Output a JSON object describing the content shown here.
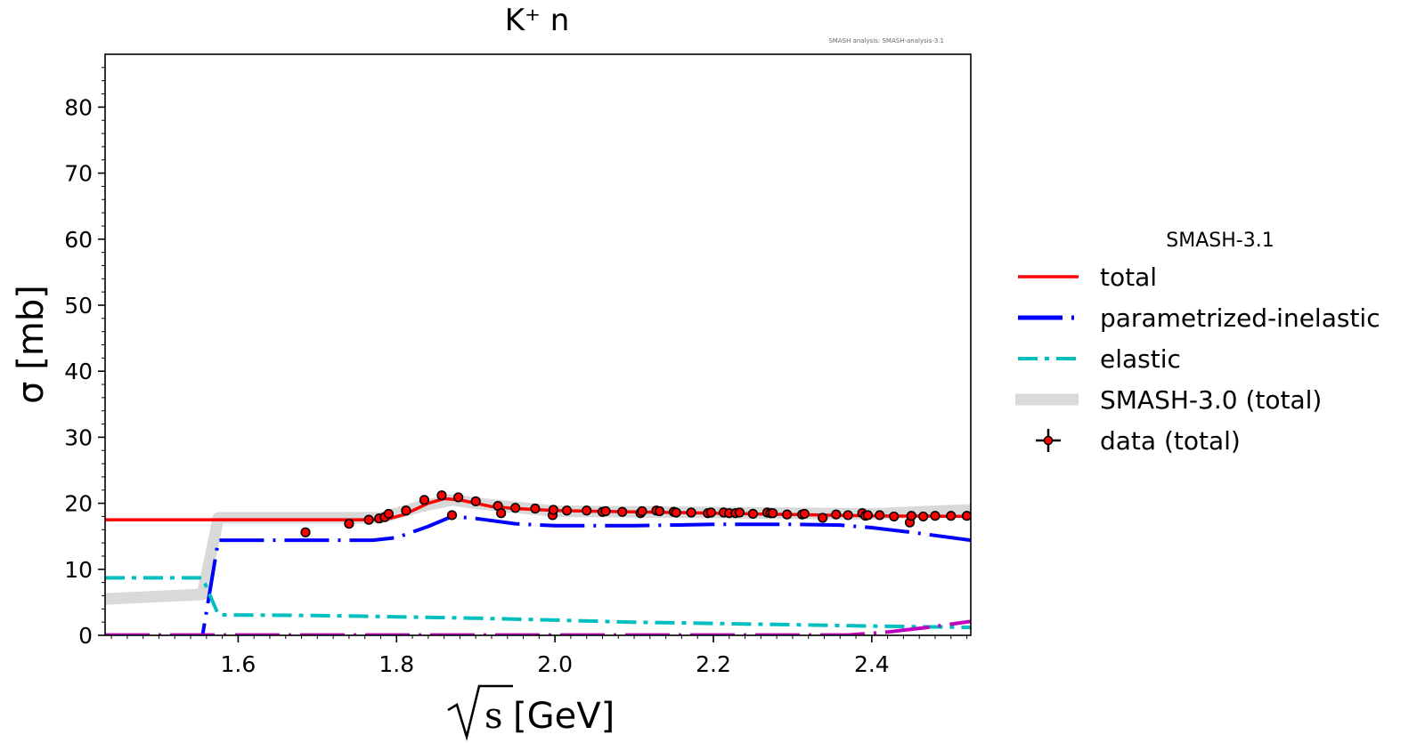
{
  "chart_data": {
    "type": "line",
    "title": "K⁺ n",
    "watermark": "SMASH analysis: SMASH-analysis-3.1",
    "xlabel": "√s [GeV]",
    "xlabel_radical": "s",
    "xlabel_unit": "[GeV]",
    "ylabel": "σ [mb]",
    "xlim": [
      1.432,
      2.525
    ],
    "ylim": [
      0,
      88
    ],
    "xticks": [
      1.6,
      1.8,
      2.0,
      2.2,
      2.4
    ],
    "xtick_labels": [
      "1.6",
      "1.8",
      "2.0",
      "2.2",
      "2.4"
    ],
    "yticks": [
      0,
      10,
      20,
      30,
      40,
      50,
      60,
      70,
      80
    ],
    "ytick_labels": [
      "0",
      "10",
      "20",
      "30",
      "40",
      "50",
      "60",
      "70",
      "80"
    ],
    "legend": {
      "title": "SMASH-3.1",
      "placement": "outside-right"
    },
    "series": [
      {
        "name": "SMASH-3.0 (total)",
        "color": "#d9d9d9",
        "style": "thick",
        "x": [
          1.432,
          1.555,
          1.575,
          1.78,
          1.83,
          1.87,
          1.9,
          2.0,
          2.2,
          2.4,
          2.525
        ],
        "y": [
          5.5,
          6.2,
          17.8,
          17.8,
          19.5,
          20.5,
          20.0,
          18.8,
          18.6,
          18.4,
          19.0
        ]
      },
      {
        "name": "total",
        "color": "#ff0000",
        "style": "solid",
        "x": [
          1.432,
          1.555,
          1.575,
          1.785,
          1.81,
          1.84,
          1.86,
          1.88,
          1.92,
          1.95,
          2.0,
          2.1,
          2.2,
          2.3,
          2.4,
          2.525
        ],
        "y": [
          17.5,
          17.5,
          17.5,
          17.5,
          18.3,
          20.0,
          20.7,
          20.5,
          19.5,
          19.2,
          18.9,
          18.7,
          18.5,
          18.3,
          18.1,
          18.0
        ]
      },
      {
        "name": "parametrized-inelastic",
        "color": "#0000ff",
        "style": "dashed",
        "x": [
          1.432,
          1.555,
          1.575,
          1.77,
          1.8,
          1.84,
          1.87,
          1.9,
          1.95,
          2.0,
          2.1,
          2.2,
          2.3,
          2.36,
          2.4,
          2.45,
          2.525
        ],
        "y": [
          0,
          0,
          14.4,
          14.4,
          14.8,
          16.5,
          18.0,
          17.7,
          16.9,
          16.6,
          16.6,
          16.8,
          16.8,
          16.7,
          16.3,
          15.6,
          14.4
        ]
      },
      {
        "name": "elastic",
        "color": "#00bfbf",
        "style": "dashdot",
        "x": [
          1.432,
          1.555,
          1.575,
          1.7,
          1.8,
          1.9,
          2.0,
          2.1,
          2.2,
          2.3,
          2.4,
          2.525
        ],
        "y": [
          8.7,
          8.7,
          3.1,
          3.0,
          2.8,
          2.6,
          2.3,
          2.0,
          1.8,
          1.6,
          1.4,
          1.2
        ]
      },
      {
        "name": "",
        "color": "#bf00bf",
        "style": "dashed",
        "x": [
          1.432,
          2.37,
          2.42,
          2.47,
          2.525
        ],
        "y": [
          0.05,
          0.05,
          0.5,
          1.2,
          2.1
        ]
      },
      {
        "name": "data (total)",
        "color": "#ff0000",
        "style": "points",
        "x": [
          1.685,
          1.74,
          1.765,
          1.778,
          1.785,
          1.79,
          1.812,
          1.835,
          1.857,
          1.87,
          1.878,
          1.9,
          1.928,
          1.932,
          1.95,
          1.975,
          1.997,
          1.998,
          2.015,
          2.04,
          2.06,
          2.064,
          2.085,
          2.108,
          2.11,
          2.128,
          2.132,
          2.15,
          2.153,
          2.172,
          2.193,
          2.197,
          2.213,
          2.22,
          2.228,
          2.233,
          2.25,
          2.268,
          2.272,
          2.275,
          2.293,
          2.312,
          2.315,
          2.338,
          2.355,
          2.37,
          2.388,
          2.392,
          2.395,
          2.41,
          2.428,
          2.448,
          2.45,
          2.465,
          2.48,
          2.5,
          2.52
        ],
        "y": [
          15.6,
          16.9,
          17.5,
          17.7,
          17.9,
          18.4,
          18.9,
          20.5,
          21.2,
          18.2,
          20.9,
          20.3,
          19.6,
          18.5,
          19.3,
          19.2,
          18.2,
          19.0,
          18.9,
          18.9,
          18.7,
          18.8,
          18.7,
          18.5,
          18.8,
          18.9,
          18.8,
          18.7,
          18.6,
          18.6,
          18.5,
          18.6,
          18.6,
          18.5,
          18.5,
          18.6,
          18.4,
          18.6,
          18.5,
          18.5,
          18.3,
          18.3,
          18.4,
          17.8,
          18.3,
          18.2,
          18.5,
          18.1,
          18.2,
          18.2,
          18.0,
          17.1,
          18.1,
          18.0,
          18.1,
          18.1,
          18.1
        ],
        "yerr": [
          0.7,
          0.4,
          0.3,
          0.3,
          0.3,
          0.3,
          0.3,
          0.3,
          0.3,
          0.6,
          0.3,
          0.3,
          0.3,
          0.6,
          0.3,
          0.3,
          0.6,
          0.3,
          0.3,
          0.3,
          0.3,
          0.3,
          0.3,
          0.6,
          0.3,
          0.3,
          0.3,
          0.3,
          0.3,
          0.3,
          0.3,
          0.3,
          0.3,
          0.3,
          0.3,
          0.3,
          0.3,
          0.3,
          0.3,
          0.3,
          0.3,
          0.3,
          0.3,
          0.6,
          0.3,
          0.3,
          0.3,
          0.3,
          0.3,
          0.3,
          0.3,
          0.6,
          0.3,
          0.3,
          0.3,
          0.3,
          0.3
        ]
      }
    ]
  }
}
